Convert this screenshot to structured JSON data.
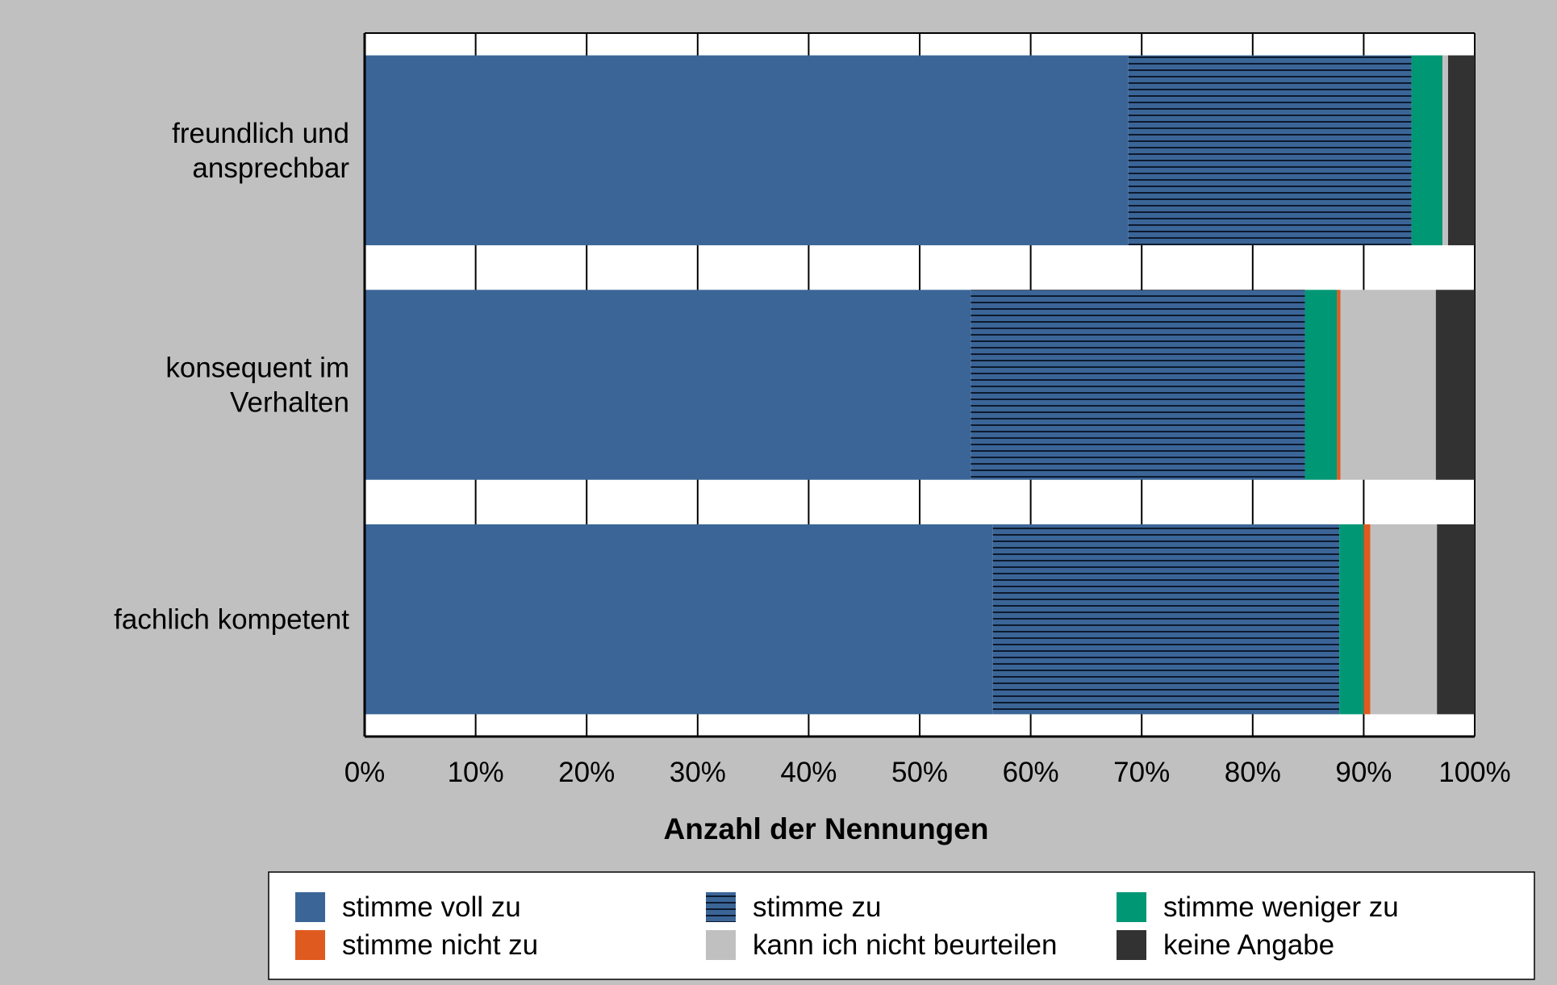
{
  "chart_data": {
    "type": "bar",
    "orientation": "horizontal",
    "stacked": true,
    "percent_stacked": true,
    "categories": [
      "freundlich und\nansprechbar",
      "konsequent im\nVerhalten",
      "fachlich kompetent"
    ],
    "series": [
      {
        "name": "stimme voll zu",
        "values": [
          68.8,
          54.6,
          56.6
        ],
        "color": "#3b6597",
        "pattern": "solid"
      },
      {
        "name": "stimme zu",
        "values": [
          25.5,
          30.1,
          31.2
        ],
        "color": "#3b6597",
        "pattern": "horizontal-lines"
      },
      {
        "name": "stimme weniger zu",
        "values": [
          2.8,
          2.9,
          2.2
        ],
        "color": "#009775",
        "pattern": "solid"
      },
      {
        "name": "stimme nicht zu",
        "values": [
          0.0,
          0.3,
          0.6
        ],
        "color": "#df5a1f",
        "pattern": "solid"
      },
      {
        "name": "kann ich nicht beurteilen",
        "values": [
          0.5,
          8.6,
          6.0
        ],
        "color": "#c0c0c0",
        "pattern": "solid"
      },
      {
        "name": "keine Angabe",
        "values": [
          2.4,
          3.5,
          3.4
        ],
        "color": "#323232",
        "pattern": "solid"
      }
    ],
    "xlim": [
      0,
      100
    ],
    "xticks": [
      "0%",
      "10%",
      "20%",
      "30%",
      "40%",
      "50%",
      "60%",
      "70%",
      "80%",
      "90%",
      "100%"
    ],
    "xlabel": "Anzahl der Nennungen",
    "ylabel": "",
    "grid": "vertical",
    "legend_position": "bottom",
    "colors": {
      "background": "#c0c0c0",
      "plot_area": "#ffffff",
      "gridline": "#000000"
    }
  }
}
